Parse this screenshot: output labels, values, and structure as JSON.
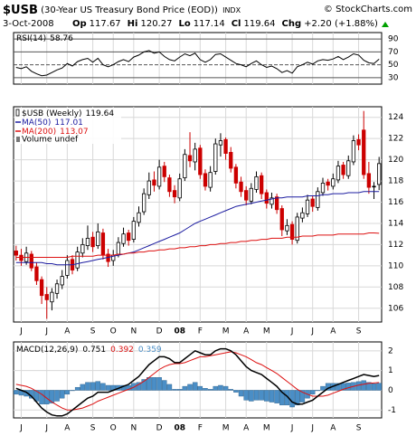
{
  "header": {
    "symbol": "$USB",
    "description": "(30-Year US Treasury Bond Price (EOD))",
    "exchange": "INDX",
    "copyright": "© StockCharts.com",
    "date": "3-Oct-2008",
    "quote": [
      {
        "label": "Op",
        "value": 117.67
      },
      {
        "label": "Hi",
        "value": 120.27
      },
      {
        "label": "Lo",
        "value": 117.14
      },
      {
        "label": "Cl",
        "value": 119.64
      },
      {
        "label": "Chg",
        "value": "+2.20 (+1.88%)"
      }
    ]
  },
  "chart_data": [
    {
      "type": "line",
      "title": "RSI(14)",
      "last": 58.76,
      "color": "#000000",
      "values": [
        46,
        44,
        47,
        40,
        36,
        33,
        34,
        38,
        42,
        45,
        52,
        48,
        55,
        58,
        60,
        54,
        60,
        50,
        47,
        50,
        55,
        58,
        55,
        62,
        65,
        70,
        72,
        68,
        70,
        63,
        58,
        56,
        62,
        67,
        64,
        68,
        58,
        54,
        58,
        66,
        67,
        62,
        57,
        52,
        50,
        47,
        52,
        56,
        50,
        46,
        48,
        44,
        38,
        41,
        37,
        47,
        50,
        54,
        51,
        56,
        58,
        57,
        59,
        63,
        58,
        62,
        67,
        65,
        57,
        53,
        52,
        58.76
      ],
      "ylim": [
        20,
        100
      ],
      "yticks": [
        30,
        50,
        70,
        90
      ],
      "grid": true
    },
    {
      "type": "candlestick",
      "name": "$USB (Weekly)",
      "last": 119.64,
      "up_color": "#000000",
      "down_color": "#cc0000",
      "volume_label": "Volume undef",
      "categories": [
        null,
        "J",
        null,
        null,
        null,
        null,
        "J",
        null,
        null,
        null,
        "A",
        null,
        null,
        null,
        null,
        "S",
        null,
        null,
        null,
        "O",
        null,
        null,
        null,
        "N",
        null,
        null,
        null,
        null,
        "D",
        null,
        null,
        null,
        "08",
        null,
        null,
        null,
        "F",
        null,
        null,
        null,
        null,
        "M",
        null,
        null,
        null,
        "A",
        null,
        null,
        null,
        "M",
        null,
        null,
        null,
        null,
        "J",
        null,
        null,
        null,
        "J",
        null,
        null,
        null,
        "A",
        null,
        null,
        null,
        null,
        "S",
        null,
        null,
        null,
        null
      ],
      "candles": {
        "open": [
          111.4,
          111.0,
          110.4,
          111.1,
          109.9,
          108.7,
          107.3,
          106.6,
          107.4,
          108.2,
          109.1,
          110.6,
          109.8,
          111.2,
          111.9,
          112.7,
          111.9,
          113.1,
          111.1,
          110.5,
          111.1,
          112.1,
          113.1,
          112.5,
          114.1,
          115.1,
          116.7,
          118.1,
          117.5,
          119.4,
          118.3,
          117.1,
          116.4,
          118.3,
          120.4,
          119.8,
          121.1,
          118.7,
          117.4,
          118.9,
          121.4,
          121.9,
          120.7,
          119.3,
          117.9,
          117.1,
          116.1,
          117.2,
          118.5,
          116.9,
          115.8,
          116.5,
          115.4,
          113.3,
          113.9,
          112.4,
          114.5,
          114.9,
          116.3,
          115.5,
          116.9,
          117.9,
          117.5,
          118.1,
          119.5,
          118.5,
          119.8,
          121.9,
          122.8,
          118.7,
          117.5,
          117.67
        ],
        "high": [
          111.9,
          111.6,
          111.8,
          111.4,
          110.3,
          109.0,
          108.0,
          107.9,
          108.7,
          109.6,
          111.0,
          111.0,
          111.8,
          112.6,
          113.8,
          113.2,
          114.0,
          113.5,
          111.6,
          111.5,
          112.7,
          113.6,
          113.4,
          114.6,
          115.6,
          117.3,
          118.8,
          118.9,
          120.0,
          119.8,
          118.6,
          117.6,
          118.7,
          121.0,
          122.6,
          121.6,
          121.4,
          119.1,
          119.4,
          122.0,
          122.5,
          122.1,
          121.2,
          119.6,
          118.4,
          117.5,
          117.8,
          118.9,
          118.8,
          117.2,
          116.9,
          116.8,
          115.7,
          114.4,
          114.2,
          115.0,
          115.5,
          116.7,
          116.6,
          117.4,
          118.3,
          118.2,
          118.7,
          119.9,
          119.8,
          120.4,
          122.3,
          122.4,
          124.6,
          119.8,
          117.9,
          120.27
        ],
        "low": [
          110.5,
          110.0,
          110.1,
          109.5,
          108.2,
          106.4,
          105.0,
          105.8,
          106.9,
          107.8,
          108.8,
          109.2,
          109.5,
          110.8,
          111.5,
          111.3,
          111.6,
          110.6,
          109.9,
          110.0,
          110.8,
          111.8,
          111.9,
          112.2,
          113.7,
          114.8,
          116.3,
          117.0,
          117.2,
          117.9,
          116.5,
          115.9,
          116.1,
          118.0,
          119.3,
          119.0,
          118.2,
          117.1,
          117.0,
          118.6,
          120.3,
          120.0,
          118.8,
          117.3,
          116.5,
          115.7,
          115.8,
          116.9,
          116.3,
          115.4,
          115.4,
          114.9,
          112.8,
          112.9,
          112.0,
          112.1,
          114.1,
          114.6,
          115.1,
          115.2,
          116.6,
          117.1,
          117.2,
          117.8,
          118.2,
          118.2,
          119.5,
          120.9,
          118.2,
          116.8,
          116.3,
          117.14
        ],
        "close": [
          111.0,
          110.5,
          111.2,
          109.8,
          108.6,
          107.2,
          106.8,
          107.5,
          108.3,
          109.0,
          110.5,
          109.6,
          111.3,
          112.0,
          112.6,
          111.8,
          113.2,
          111.0,
          110.4,
          111.0,
          112.2,
          113.0,
          112.4,
          114.2,
          115.0,
          116.8,
          118.0,
          117.6,
          119.3,
          118.4,
          117.0,
          116.5,
          118.2,
          120.5,
          119.9,
          121.0,
          118.6,
          117.5,
          118.8,
          121.5,
          121.8,
          120.6,
          119.2,
          117.8,
          117.0,
          116.2,
          117.3,
          118.4,
          116.8,
          115.9,
          116.4,
          115.3,
          113.4,
          113.8,
          112.5,
          114.6,
          115.0,
          116.2,
          115.6,
          117.0,
          117.8,
          117.6,
          118.2,
          119.4,
          118.6,
          119.9,
          121.8,
          121.4,
          118.6,
          117.4,
          117.44,
          119.64
        ]
      },
      "series": [
        {
          "name": "MA(50)",
          "color": "#1c1ca0",
          "last": 117.01,
          "values": [
            110.3,
            110.3,
            110.3,
            110.3,
            110.3,
            110.3,
            110.2,
            110.2,
            110.1,
            110.1,
            110.1,
            110.1,
            110.2,
            110.3,
            110.4,
            110.5,
            110.6,
            110.7,
            110.8,
            110.9,
            111.0,
            111.1,
            111.2,
            111.3,
            111.5,
            111.7,
            111.9,
            112.1,
            112.3,
            112.5,
            112.7,
            112.9,
            113.1,
            113.4,
            113.7,
            114.0,
            114.2,
            114.4,
            114.6,
            114.8,
            115.0,
            115.2,
            115.4,
            115.6,
            115.7,
            115.8,
            115.9,
            116.0,
            116.1,
            116.2,
            116.3,
            116.4,
            116.4,
            116.5,
            116.5,
            116.5,
            116.5,
            116.6,
            116.6,
            116.6,
            116.7,
            116.7,
            116.8,
            116.8,
            116.8,
            116.9,
            116.9,
            116.9,
            117.0,
            117.0,
            117.0,
            117.01
          ]
        },
        {
          "name": "MA(200)",
          "color": "#dd1111",
          "last": 113.07,
          "values": [
            110.8,
            110.8,
            110.8,
            110.8,
            110.8,
            110.8,
            110.8,
            110.8,
            110.8,
            110.8,
            110.8,
            110.9,
            110.9,
            110.9,
            110.9,
            110.9,
            111.0,
            111.0,
            111.0,
            111.0,
            111.1,
            111.1,
            111.2,
            111.2,
            111.3,
            111.3,
            111.4,
            111.4,
            111.5,
            111.5,
            111.6,
            111.6,
            111.7,
            111.7,
            111.8,
            111.8,
            111.9,
            111.9,
            112.0,
            112.0,
            112.1,
            112.1,
            112.2,
            112.2,
            112.3,
            112.3,
            112.4,
            112.4,
            112.5,
            112.5,
            112.6,
            112.6,
            112.6,
            112.7,
            112.7,
            112.7,
            112.8,
            112.8,
            112.8,
            112.9,
            112.9,
            112.9,
            112.9,
            113.0,
            113.0,
            113.0,
            113.0,
            113.0,
            113.0,
            113.1,
            113.1,
            113.07
          ]
        }
      ],
      "ylim": [
        104.7,
        125.0
      ],
      "yticks": [
        106,
        108,
        110,
        112,
        114,
        116,
        118,
        120,
        122,
        124
      ],
      "grid": true
    },
    {
      "type": "macd",
      "title": "MACD(12,26,9)",
      "categories": [
        null,
        "J",
        null,
        null,
        null,
        null,
        "J",
        null,
        null,
        null,
        "A",
        null,
        null,
        null,
        null,
        "S",
        null,
        null,
        null,
        "O",
        null,
        null,
        null,
        "N",
        null,
        null,
        null,
        null,
        "D",
        null,
        null,
        null,
        "08",
        null,
        null,
        null,
        "F",
        null,
        null,
        null,
        null,
        "M",
        null,
        null,
        null,
        "A",
        null,
        null,
        null,
        "M",
        null,
        null,
        null,
        null,
        "J",
        null,
        null,
        null,
        "J",
        null,
        null,
        null,
        "A",
        null,
        null,
        null,
        null,
        "S",
        null,
        null,
        null,
        null
      ],
      "series": [
        {
          "name": "MACD",
          "color": "#000000",
          "last": 0.751,
          "values": [
            0.1,
            0.0,
            -0.1,
            -0.3,
            -0.6,
            -0.9,
            -1.1,
            -1.25,
            -1.3,
            -1.3,
            -1.2,
            -1.0,
            -0.8,
            -0.6,
            -0.4,
            -0.3,
            -0.1,
            -0.1,
            -0.1,
            0.0,
            0.1,
            0.2,
            0.3,
            0.5,
            0.7,
            1.0,
            1.3,
            1.5,
            1.7,
            1.7,
            1.6,
            1.4,
            1.4,
            1.6,
            1.8,
            2.0,
            1.9,
            1.8,
            1.8,
            2.0,
            2.1,
            2.1,
            2.0,
            1.8,
            1.5,
            1.2,
            1.0,
            0.9,
            0.8,
            0.6,
            0.4,
            0.2,
            -0.1,
            -0.3,
            -0.6,
            -0.7,
            -0.7,
            -0.6,
            -0.5,
            -0.3,
            -0.1,
            0.1,
            0.2,
            0.3,
            0.4,
            0.5,
            0.6,
            0.7,
            0.8,
            0.75,
            0.7,
            0.751
          ]
        },
        {
          "name": "Signal",
          "color": "#dd1111",
          "last": 0.392,
          "values": [
            0.3,
            0.25,
            0.2,
            0.1,
            -0.05,
            -0.2,
            -0.4,
            -0.6,
            -0.75,
            -0.9,
            -1.0,
            -1.0,
            -0.95,
            -0.9,
            -0.8,
            -0.7,
            -0.55,
            -0.45,
            -0.35,
            -0.25,
            -0.15,
            -0.05,
            0.05,
            0.15,
            0.3,
            0.45,
            0.65,
            0.85,
            1.05,
            1.2,
            1.3,
            1.35,
            1.35,
            1.4,
            1.5,
            1.6,
            1.7,
            1.7,
            1.75,
            1.8,
            1.85,
            1.9,
            1.95,
            1.9,
            1.8,
            1.7,
            1.55,
            1.4,
            1.3,
            1.15,
            1.0,
            0.85,
            0.65,
            0.45,
            0.25,
            0.05,
            -0.1,
            -0.2,
            -0.3,
            -0.3,
            -0.3,
            -0.25,
            -0.15,
            -0.05,
            0.05,
            0.13,
            0.2,
            0.26,
            0.31,
            0.35,
            0.37,
            0.392
          ]
        },
        {
          "name": "Histogram",
          "color": "#4a8ec6",
          "last": 0.359,
          "values": [
            -0.2,
            -0.25,
            -0.3,
            -0.4,
            -0.55,
            -0.7,
            -0.7,
            -0.65,
            -0.55,
            -0.4,
            -0.2,
            0.0,
            0.15,
            0.3,
            0.4,
            0.4,
            0.45,
            0.35,
            0.25,
            0.25,
            0.25,
            0.25,
            0.25,
            0.35,
            0.4,
            0.55,
            0.65,
            0.65,
            0.65,
            0.5,
            0.3,
            0.05,
            0.05,
            0.2,
            0.3,
            0.4,
            0.2,
            0.1,
            0.05,
            0.2,
            0.25,
            0.2,
            0.05,
            -0.1,
            -0.3,
            -0.5,
            -0.55,
            -0.5,
            -0.5,
            -0.55,
            -0.6,
            -0.65,
            -0.75,
            -0.75,
            -0.85,
            -0.75,
            -0.6,
            -0.4,
            -0.2,
            0.0,
            0.2,
            0.35,
            0.35,
            0.35,
            0.35,
            0.37,
            0.4,
            0.44,
            0.49,
            0.4,
            0.33,
            0.359
          ]
        }
      ],
      "ylim": [
        -1.4,
        2.45
      ],
      "yticks": [
        -1,
        0,
        1,
        2
      ],
      "grid": true
    }
  ]
}
